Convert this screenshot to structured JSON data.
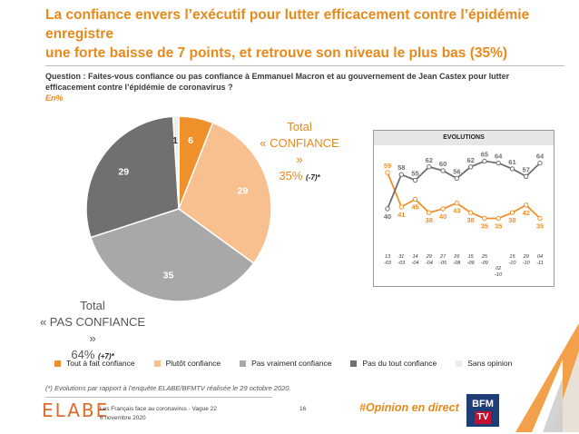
{
  "title": {
    "line1": "La confiance envers l’exécutif pour lutter efficacement contre l’épidémie enregistre",
    "line2": "une forte baisse de 7 points, et retrouve son niveau le plus bas (35%)"
  },
  "question": {
    "line1": "Question : Faites-vous confiance ou pas confiance à Emmanuel Macron et au gouvernement de Jean Castex pour lutter",
    "line2": "efficacement contre l’épidémie de coronavirus ?",
    "unit": "En%"
  },
  "summary": {
    "confiance": {
      "l1": "Total",
      "l2": "« CONFIANCE »",
      "pct": "35%",
      "delta": "(-7)*"
    },
    "pas_confiance": {
      "l1": "Total",
      "l2": "« PAS CONFIANCE »",
      "pct": "64%",
      "delta": "(+7)*"
    }
  },
  "colors": {
    "orange": "#F0902A",
    "light_orange": "#F8C08E",
    "light_gray": "#A8A8A8",
    "dark_gray": "#707070",
    "very_light": "#ECECEC",
    "title": "#E8891C"
  },
  "chart_data": [
    {
      "type": "pie",
      "slices": [
        {
          "name": "Tout à fait confiance",
          "value": 6,
          "label": "6",
          "color": "#F0902A"
        },
        {
          "name": "Plutôt confiance",
          "value": 29,
          "label": "29",
          "color": "#F8C08E"
        },
        {
          "name": "Pas vraiment confiance",
          "value": 35,
          "label": "35",
          "color": "#A8A8A8"
        },
        {
          "name": "Pas du tout confiance",
          "value": 29,
          "label": "29",
          "color": "#707070"
        },
        {
          "name": "Sans opinion",
          "value": 1,
          "label": "1",
          "color": "#ECECEC"
        }
      ]
    },
    {
      "type": "line",
      "title": "EVOLUTIONS",
      "ylim": [
        30,
        70
      ],
      "categories": [
        "13 -03",
        "31 -03",
        "14 -04",
        "29 -04",
        "27 -05",
        "26 -08",
        "15 -09",
        "25 -09",
        "02 -10",
        "15 -10",
        "29 -10",
        "04 -11"
      ],
      "x": [
        0,
        1,
        2,
        3,
        4,
        5,
        6,
        7,
        8,
        9,
        10,
        11
      ],
      "series": [
        {
          "name": "Confiance",
          "color": "#F0902A",
          "values": [
            59,
            41,
            45,
            38,
            40,
            43,
            38,
            35,
            35,
            38,
            42,
            35
          ]
        },
        {
          "name": "Pas confiance",
          "color": "#6E6E6E",
          "values": [
            40,
            58,
            55,
            62,
            60,
            56,
            62,
            65,
            64,
            61,
            57,
            64
          ]
        }
      ]
    }
  ],
  "legend": [
    {
      "label": "Tout à fait confiance",
      "color": "#F0902A"
    },
    {
      "label": "Plutôt confiance",
      "color": "#F8C08E"
    },
    {
      "label": "Pas vraiment confiance",
      "color": "#A8A8A8"
    },
    {
      "label": "Pas du tout confiance",
      "color": "#707070"
    },
    {
      "label": "Sans opinion",
      "color": "#ECECEC"
    }
  ],
  "footnote": "(*) Evolutions par rapport à l’enquête ELABE/BFMTV réalisée le 29 octobre 2020.",
  "footer": {
    "logo": "ELABE",
    "study": "Les Français face au coronavirus - Vague 22",
    "date": "6 novembre 2020",
    "page": "16",
    "hashtag": "#Opinion en direct",
    "partner_1": "BFM",
    "partner_2": "TV"
  }
}
